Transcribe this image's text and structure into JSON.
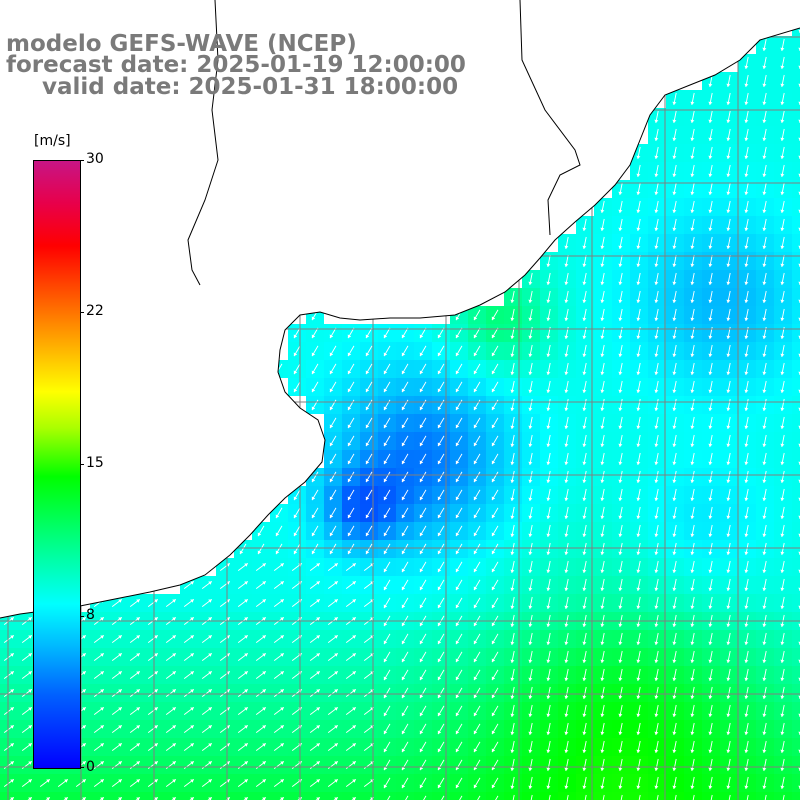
{
  "title": {
    "line1": "modelo GEFS-WAVE (NCEP)",
    "line2": "forecast date: 2025-01-19 12:00:00",
    "line3": "valid date: 2025-01-31 18:00:00"
  },
  "colorbar": {
    "unit": "[m/s]",
    "ticks": [
      "30",
      "22",
      "15",
      "8",
      "0"
    ],
    "colors": [
      "#0000ff",
      "#00b8ff",
      "#00ffff",
      "#00ff00",
      "#ffff00",
      "#ff0000",
      "#c71585"
    ]
  },
  "map": {
    "variable": "wind speed and direction",
    "range": [
      0,
      30
    ],
    "coast_color": "#000000",
    "grid_color": "#7f7f7f",
    "arrow_color": "#ffffff"
  }
}
